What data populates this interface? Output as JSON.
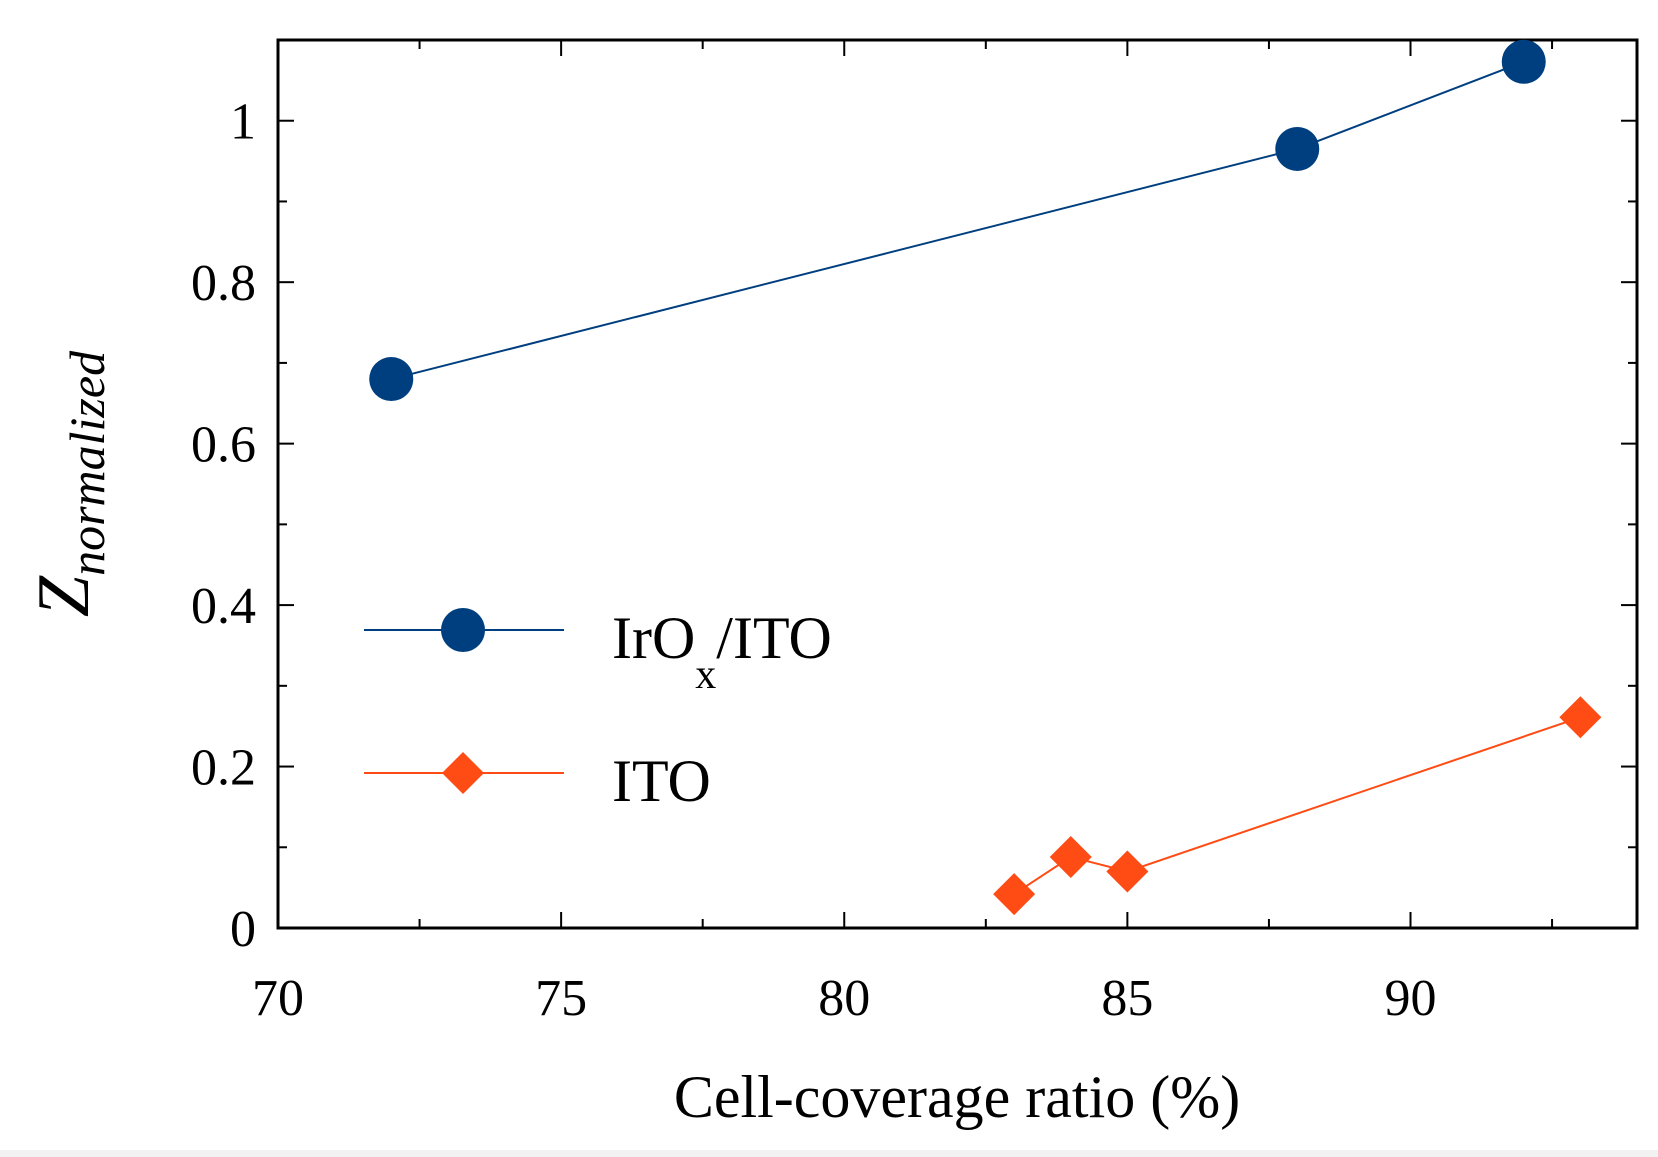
{
  "chart_data": {
    "type": "line",
    "title": "",
    "xlabel": "Cell-coverage ratio (%)",
    "ylabel": {
      "main": "Z",
      "subscript": "normalized"
    },
    "xlim": [
      70,
      94
    ],
    "ylim": [
      0,
      1.1
    ],
    "x_ticks": [
      70,
      75,
      80,
      85,
      90
    ],
    "x_tick_labels": [
      "70",
      "75",
      "80",
      "85",
      "90"
    ],
    "y_ticks": [
      0,
      0.2,
      0.4,
      0.6,
      0.8,
      1
    ],
    "y_tick_labels": [
      "0",
      "0.2",
      "0.4",
      "0.6",
      "0.8",
      "1"
    ],
    "grid": false,
    "legend_position": "center-left",
    "series": [
      {
        "name": "IrOx/ITO",
        "label_main": "IrO",
        "label_sub": "x",
        "label_rest": "/ITO",
        "marker": "circle",
        "color": "#003f7f",
        "x": [
          72,
          88,
          92
        ],
        "y": [
          0.68,
          0.965,
          1.073
        ]
      },
      {
        "name": "ITO",
        "label_main": "ITO",
        "marker": "diamond",
        "color": "#ff4b14",
        "x": [
          83,
          84,
          85,
          93
        ],
        "y": [
          0.042,
          0.088,
          0.07,
          0.261
        ]
      }
    ]
  }
}
